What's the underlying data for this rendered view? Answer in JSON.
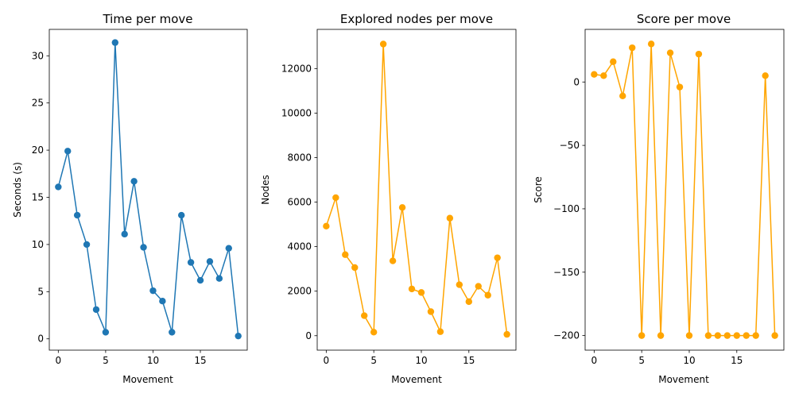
{
  "colors": {
    "series_0": "#1f77b4",
    "series_1": "#ffa500",
    "series_2": "#ffa500"
  },
  "chart_data": [
    {
      "type": "line",
      "title": "Time per move",
      "xlabel": "Movement",
      "ylabel": "Seconds (s)",
      "xlim": [
        -0.95,
        19.95
      ],
      "ylim": [
        -1.2,
        32.8
      ],
      "xticks": [
        0,
        5,
        10,
        15
      ],
      "yticks": [
        0,
        5,
        10,
        15,
        20,
        25,
        30
      ],
      "xtick_labels": [
        "0",
        "5",
        "10",
        "15"
      ],
      "ytick_labels": [
        "0",
        "5",
        "10",
        "15",
        "20",
        "25",
        "30"
      ],
      "grid": false,
      "markers": true,
      "x": [
        0,
        1,
        2,
        3,
        4,
        5,
        6,
        7,
        8,
        9,
        10,
        11,
        12,
        13,
        14,
        15,
        16,
        17,
        18,
        19
      ],
      "values": [
        16.1,
        19.9,
        13.1,
        10.0,
        3.1,
        0.7,
        31.4,
        11.1,
        16.7,
        9.7,
        5.1,
        4.0,
        0.7,
        13.1,
        8.1,
        6.2,
        8.2,
        6.4,
        9.6,
        0.3
      ]
    },
    {
      "type": "line",
      "title": "Explored nodes per move",
      "xlabel": "Movement",
      "ylabel": "Nodes",
      "xlim": [
        -0.95,
        19.95
      ],
      "ylim": [
        -650,
        13760
      ],
      "xticks": [
        0,
        5,
        10,
        15
      ],
      "yticks": [
        0,
        2000,
        4000,
        6000,
        8000,
        10000,
        12000
      ],
      "xtick_labels": [
        "0",
        "5",
        "10",
        "15"
      ],
      "ytick_labels": [
        "0",
        "2000",
        "4000",
        "6000",
        "8000",
        "10000",
        "12000"
      ],
      "grid": false,
      "markers": true,
      "x": [
        0,
        1,
        2,
        3,
        4,
        5,
        6,
        7,
        8,
        9,
        10,
        11,
        12,
        13,
        14,
        15,
        16,
        17,
        18,
        19
      ],
      "values": [
        4920,
        6200,
        3640,
        3060,
        900,
        160,
        13100,
        3360,
        5760,
        2100,
        1940,
        1080,
        180,
        5280,
        2290,
        1530,
        2220,
        1820,
        3500,
        60
      ]
    },
    {
      "type": "line",
      "title": "Score per move",
      "xlabel": "Movement",
      "ylabel": "Score",
      "xlim": [
        -0.95,
        19.95
      ],
      "ylim": [
        -211.5,
        41.5
      ],
      "xticks": [
        0,
        5,
        10,
        15
      ],
      "yticks": [
        -200,
        -150,
        -100,
        -50,
        0
      ],
      "xtick_labels": [
        "0",
        "5",
        "10",
        "15"
      ],
      "ytick_labels": [
        "−200",
        "−150",
        "−100",
        "−50",
        "0"
      ],
      "grid": false,
      "markers": true,
      "x": [
        0,
        1,
        2,
        3,
        4,
        5,
        6,
        7,
        8,
        9,
        10,
        11,
        12,
        13,
        14,
        15,
        16,
        17,
        18,
        19
      ],
      "values": [
        6,
        5,
        16,
        -11,
        27,
        -200,
        30,
        -200,
        23,
        -4,
        -200,
        22,
        -200,
        -200,
        -200,
        -200,
        -200,
        -200,
        5,
        -200
      ]
    }
  ]
}
